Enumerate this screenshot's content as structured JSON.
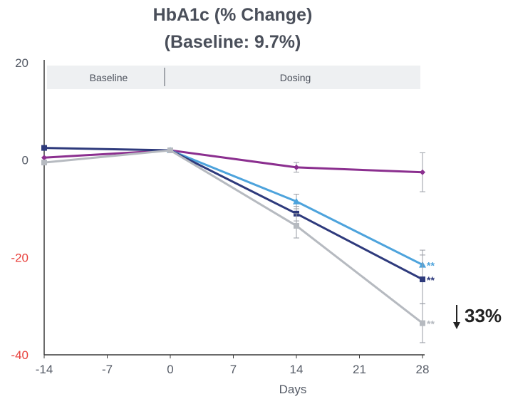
{
  "chart_data": {
    "type": "line",
    "title": "HbA1c (% Change)",
    "subtitle": "(Baseline: 9.7%)",
    "xlabel": "Days",
    "ylabel": "",
    "x": [
      -14,
      0,
      14,
      28
    ],
    "x_ticks": [
      "-14",
      "-7",
      "0",
      "7",
      "14",
      "21",
      "28"
    ],
    "x_tick_values": [
      -14,
      -7,
      0,
      7,
      14,
      21,
      28
    ],
    "y_ticks": [
      "20",
      "0",
      "-20",
      "-40"
    ],
    "y_tick_values": [
      20,
      0,
      -20,
      -40
    ],
    "y_tick_colors": [
      "#555b66",
      "#555b66",
      "#e8413c",
      "#e8413c"
    ],
    "xlim": [
      -14,
      28
    ],
    "ylim": [
      -40,
      20
    ],
    "bands": [
      {
        "label": "Baseline",
        "from": -14,
        "to": 0
      },
      {
        "label": "Dosing",
        "from": 0,
        "to": 28
      }
    ],
    "series": [
      {
        "color": "#8b2f8f",
        "marker": "diamond",
        "values": [
          0.5,
          2,
          -1.5,
          -2.5
        ],
        "error": [
          0,
          0,
          1,
          4
        ],
        "significance": ""
      },
      {
        "color": "#4da3dc",
        "marker": "triangle",
        "values": [
          null,
          2,
          -8.5,
          -21.5
        ],
        "error": [
          0,
          0,
          1.5,
          3
        ],
        "significance": "**"
      },
      {
        "color": "#2e3a7c",
        "marker": "square",
        "values": [
          2.5,
          2,
          -11,
          -24.5
        ],
        "error": [
          0,
          0,
          1.5,
          5
        ],
        "significance": "**"
      },
      {
        "color": "#b6bac0",
        "marker": "square",
        "values": [
          -0.5,
          2,
          -13.5,
          -33.5
        ],
        "error": [
          0,
          0,
          2.5,
          4
        ],
        "significance": "**"
      }
    ],
    "callout": "33%",
    "legend": "none",
    "grid": false
  }
}
